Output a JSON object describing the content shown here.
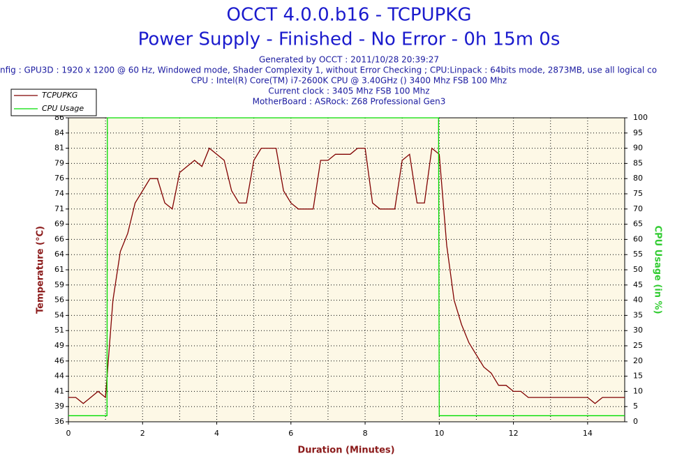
{
  "chart_data": {
    "type": "line",
    "title": "OCCT 4.0.0.b16 - TCPUPKG",
    "subtitle": "Power Supply - Finished - No Error - 0h 15m 0s",
    "info": [
      "Generated by OCCT : 2011/10/28 20:39:27",
      "nfig : GPU3D : 1920 x 1200 @ 60 Hz, Windowed mode, Shader Complexity 1, without Error Checking ; CPU:Linpack : 64bits mode, 2873MB, use all logical co",
      "CPU : Intel(R) Core(TM) i7-2600K CPU @ 3.40GHz () 3400 Mhz FSB 100 Mhz",
      "Current clock : 3405 Mhz FSB 100 Mhz",
      "MotherBoard : ASRock: Z68 Professional Gen3"
    ],
    "xlabel": "Duration (Minutes)",
    "ylabel": "Temperature (°C)",
    "y2label": "CPU Usage (in %)",
    "xlim": [
      0,
      15
    ],
    "xticks": [
      0,
      2,
      4,
      6,
      8,
      10,
      12,
      14
    ],
    "xgrid": [
      1,
      2,
      3,
      4,
      5,
      6,
      7,
      8,
      9,
      10,
      11,
      12,
      13,
      14
    ],
    "ylim": [
      36,
      86
    ],
    "yticks": [
      36,
      {
        "value": 38.5,
        "label": "39"
      },
      41,
      {
        "value": 43.5,
        "label": "44"
      },
      46,
      {
        "value": 48.5,
        "label": "49"
      },
      51,
      {
        "value": 53.5,
        "label": "54"
      },
      56,
      {
        "value": 58.5,
        "label": "59"
      },
      61,
      {
        "value": 63.5,
        "label": "64"
      },
      66,
      {
        "value": 68.5,
        "label": "69"
      },
      71,
      {
        "value": 73.5,
        "label": "74"
      },
      76,
      {
        "value": 78.5,
        "label": "79"
      },
      81,
      {
        "value": 83.5,
        "label": "84"
      },
      86
    ],
    "y2lim": [
      0,
      100
    ],
    "y2ticks": [
      0,
      5,
      10,
      15,
      20,
      25,
      30,
      35,
      40,
      45,
      50,
      55,
      60,
      65,
      70,
      75,
      80,
      85,
      90,
      95,
      100
    ],
    "grid": true,
    "legend": "top-left",
    "series": [
      {
        "name": "TCPUPKG",
        "color": "#800000",
        "x": [
          0,
          0.2,
          0.4,
          0.6,
          0.8,
          1.0,
          1.2,
          1.4,
          1.6,
          1.8,
          2.0,
          2.2,
          2.4,
          2.6,
          2.8,
          3.0,
          3.2,
          3.4,
          3.6,
          3.8,
          4.0,
          4.2,
          4.4,
          4.6,
          4.8,
          5.0,
          5.2,
          5.4,
          5.6,
          5.8,
          6.0,
          6.2,
          6.4,
          6.6,
          6.8,
          7.0,
          7.2,
          7.4,
          7.6,
          7.8,
          8.0,
          8.2,
          8.4,
          8.6,
          8.8,
          9.0,
          9.2,
          9.4,
          9.6,
          9.8,
          10.0,
          10.2,
          10.4,
          10.6,
          10.8,
          11.0,
          11.2,
          11.4,
          11.6,
          11.8,
          12.0,
          12.2,
          12.4,
          12.6,
          12.8,
          13.0,
          13.2,
          13.4,
          13.6,
          13.8,
          14.0,
          14.2,
          14.4,
          14.6,
          14.8,
          15.0
        ],
        "values": [
          40,
          40,
          39,
          40,
          41,
          40,
          56,
          64,
          67,
          72,
          74,
          76,
          76,
          72,
          71,
          77,
          78,
          79,
          78,
          81,
          80,
          79,
          74,
          72,
          72,
          79,
          81,
          81,
          81,
          74,
          72,
          71,
          71,
          71,
          79,
          79,
          80,
          80,
          80,
          81,
          81,
          72,
          71,
          71,
          71,
          79,
          80,
          72,
          72,
          81,
          80,
          65,
          56,
          52,
          49,
          47,
          45,
          44,
          42,
          42,
          41,
          41,
          40,
          40,
          40,
          40,
          40,
          40,
          40,
          40,
          40,
          39,
          40,
          40,
          40,
          40
        ]
      },
      {
        "name": "CPU Usage",
        "color": "#00dd00",
        "axis": "y2",
        "x": [
          0,
          1.04,
          1.05,
          9.98,
          10.0,
          15
        ],
        "values": [
          2,
          2,
          100,
          100,
          2,
          2
        ]
      }
    ]
  }
}
